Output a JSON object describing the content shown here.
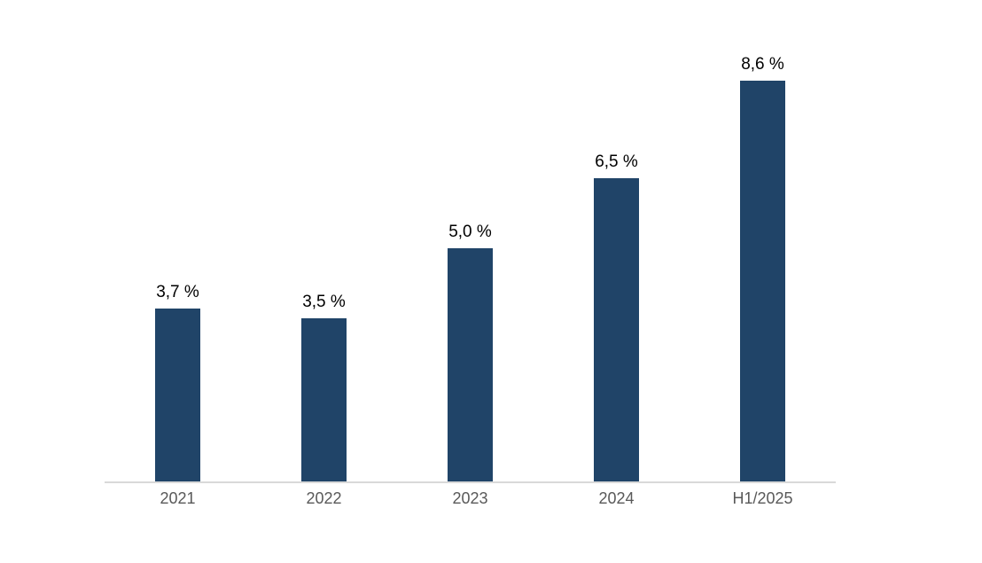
{
  "chart_data": {
    "type": "bar",
    "categories": [
      "2021",
      "2022",
      "2023",
      "2024",
      "H1/2025"
    ],
    "values": [
      3.7,
      3.5,
      5.0,
      6.5,
      8.6
    ],
    "value_labels": [
      "3,7 %",
      "3,5 %",
      "5,0 %",
      "6,5 %",
      "8,6 %"
    ],
    "title": "",
    "xlabel": "",
    "ylabel": "",
    "ylim": [
      0,
      10
    ],
    "grid": false,
    "legend_position": "none",
    "colors": {
      "bar": "#204468",
      "axis_line": "#d9d9d9",
      "value_label": "#000000",
      "category_label": "#595959",
      "background": "#ffffff"
    }
  }
}
